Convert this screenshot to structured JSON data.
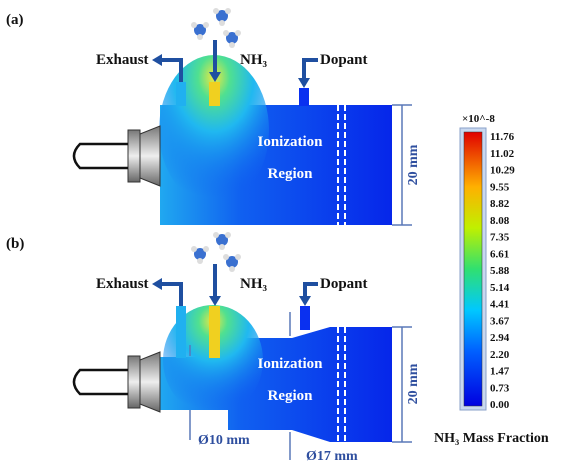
{
  "panels": [
    {
      "label": "(a)",
      "exhaust": "Exhaust",
      "gas": "NH₃",
      "dopant": "Dopant",
      "region": [
        "Ionization",
        "Region"
      ],
      "dimension": "20 mm"
    },
    {
      "label": "(b)",
      "exhaust": "Exhaust",
      "gas": "NH₃",
      "dopant": "Dopant",
      "region": [
        "Ionization",
        "Region"
      ],
      "dimension": "20 mm",
      "diameters": [
        "Ø10 mm",
        "Ø17 mm"
      ]
    }
  ],
  "colorbar": {
    "scale": "×10^-8",
    "ticks": [
      "11.76",
      "11.02",
      "10.29",
      "9.55",
      "8.82",
      "8.08",
      "7.35",
      "6.61",
      "5.88",
      "5.14",
      "4.41",
      "3.67",
      "2.94",
      "2.20",
      "1.47",
      "0.73",
      "0.00"
    ],
    "title": "NH₃ Mass Fraction"
  }
}
